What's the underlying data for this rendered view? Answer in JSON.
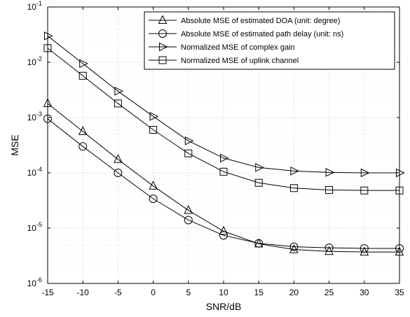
{
  "chart_data": {
    "type": "line",
    "title": "",
    "xlabel": "SNR/dB",
    "ylabel": "MSE",
    "xlim": [
      -15,
      35
    ],
    "ylim": [
      1e-06,
      0.1
    ],
    "yscale": "log",
    "grid": true,
    "legend_position": "top-right",
    "x": [
      -15,
      -10,
      -5,
      0,
      5,
      10,
      15,
      20,
      25,
      30,
      35
    ],
    "x_tick_labels": [
      "-15",
      "-10",
      "-5",
      "0",
      "5",
      "10",
      "15",
      "20",
      "25",
      "30",
      "35"
    ],
    "y_ticks": [
      {
        "value": 1e-06,
        "base": "10",
        "exp": "-6"
      },
      {
        "value": 1e-05,
        "base": "10",
        "exp": "-5"
      },
      {
        "value": 0.0001,
        "base": "10",
        "exp": "-4"
      },
      {
        "value": 0.001,
        "base": "10",
        "exp": "-3"
      },
      {
        "value": 0.01,
        "base": "10",
        "exp": "-2"
      },
      {
        "value": 0.1,
        "base": "10",
        "exp": "-1"
      }
    ],
    "series": [
      {
        "name": "Absolute MSE of estimated DOA (unit: degree)",
        "marker": "triangle-up",
        "values": [
          0.0018,
          0.00056,
          0.000175,
          5.8e-05,
          2.1e-05,
          8.8e-06,
          5.2e-06,
          4.1e-06,
          3.8e-06,
          3.7e-06,
          3.7e-06
        ]
      },
      {
        "name": "Absolute MSE of estimated path delay (unit: ns)",
        "marker": "circle",
        "values": [
          0.00095,
          0.0003,
          0.0001,
          3.4e-05,
          1.4e-05,
          7.4e-06,
          5.3e-06,
          4.6e-06,
          4.4e-06,
          4.3e-06,
          4.3e-06
        ]
      },
      {
        "name": "Normalized MSE of complex gain",
        "marker": "triangle-right",
        "values": [
          0.03,
          0.0095,
          0.003,
          0.00105,
          0.00038,
          0.000185,
          0.000125,
          0.000108,
          0.000102,
          0.0001,
          0.0001
        ]
      },
      {
        "name": "Normalized MSE of uplink channel",
        "marker": "square",
        "values": [
          0.018,
          0.0057,
          0.0018,
          0.0006,
          0.000225,
          0.000105,
          6.6e-05,
          5.3e-05,
          4.9e-05,
          4.8e-05,
          4.8e-05
        ]
      }
    ]
  }
}
